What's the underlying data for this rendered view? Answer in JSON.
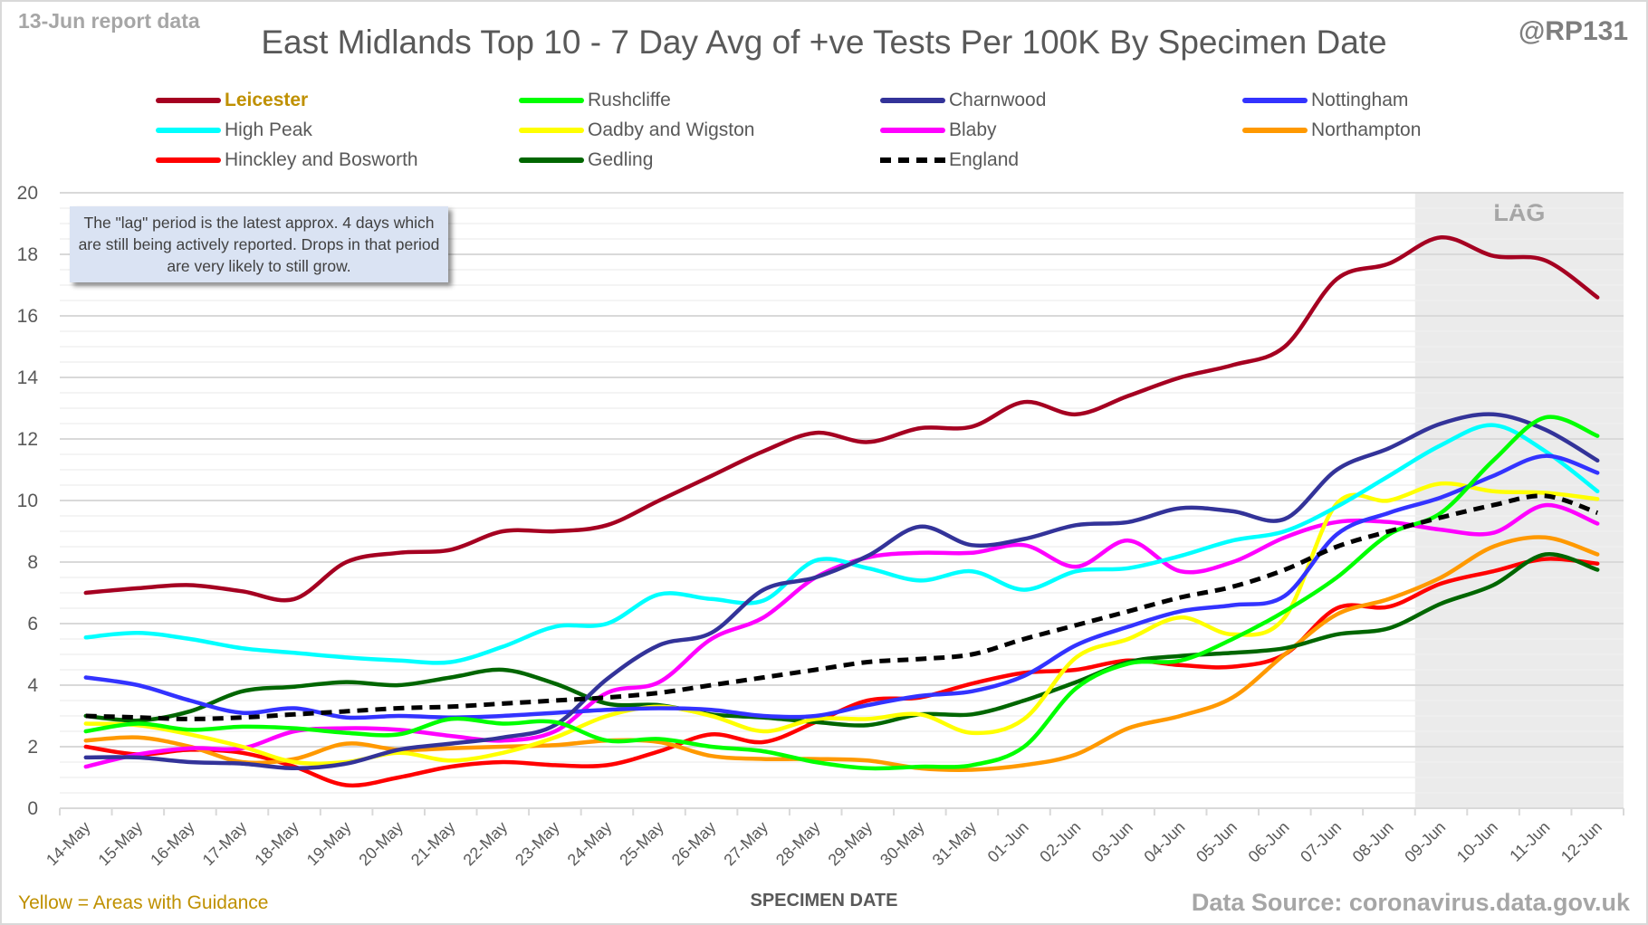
{
  "header": {
    "report_date": "13-Jun report data",
    "handle": "@RP131"
  },
  "note": "The \"lag\" period is the latest approx. 4 days which are still being actively reported. Drops in that period are very likely to still grow.",
  "footer": {
    "guidance_note": "Yellow = Areas with Guidance",
    "source": "Data Source: coronavirus.data.gov.uk"
  },
  "chart_data": {
    "type": "line",
    "title": "East Midlands Top 10 - 7 Day Avg of +ve Tests Per 100K By Specimen Date",
    "xlabel": "SPECIMEN DATE",
    "ylabel": "",
    "ylim": [
      0,
      20
    ],
    "yticks": [
      0,
      2,
      4,
      6,
      8,
      10,
      12,
      14,
      16,
      18,
      20
    ],
    "grid": true,
    "legend_position": "top",
    "lag_region": {
      "label": "LAG",
      "from": "09-Jun",
      "to": "12-Jun",
      "color": "#ebebeb"
    },
    "categories": [
      "14-May",
      "15-May",
      "16-May",
      "17-May",
      "18-May",
      "19-May",
      "20-May",
      "21-May",
      "22-May",
      "23-May",
      "24-May",
      "25-May",
      "26-May",
      "27-May",
      "28-May",
      "29-May",
      "30-May",
      "31-May",
      "01-Jun",
      "02-Jun",
      "03-Jun",
      "04-Jun",
      "05-Jun",
      "06-Jun",
      "07-Jun",
      "08-Jun",
      "09-Jun",
      "10-Jun",
      "11-Jun",
      "12-Jun"
    ],
    "series": [
      {
        "name": "Leicester",
        "color": "#a50021",
        "highlight": true,
        "dashed": false,
        "values": [
          7.0,
          7.15,
          7.25,
          7.05,
          6.8,
          8.0,
          8.3,
          8.4,
          9.0,
          9.0,
          9.2,
          10.0,
          10.8,
          11.6,
          12.2,
          11.9,
          12.35,
          12.4,
          13.2,
          12.8,
          13.4,
          14.0,
          14.4,
          15.0,
          17.2,
          17.7,
          18.55,
          17.95,
          17.8,
          16.6
        ]
      },
      {
        "name": "Rushcliffe",
        "color": "#00ff00",
        "highlight": false,
        "dashed": false,
        "values": [
          2.5,
          2.75,
          2.55,
          2.65,
          2.6,
          2.45,
          2.4,
          2.9,
          2.75,
          2.8,
          2.2,
          2.25,
          2.0,
          1.85,
          1.5,
          1.3,
          1.35,
          1.4,
          2.0,
          3.9,
          4.7,
          4.8,
          5.5,
          6.4,
          7.5,
          8.9,
          9.6,
          11.3,
          12.7,
          12.1
        ]
      },
      {
        "name": "Charnwood",
        "color": "#333399",
        "highlight": false,
        "dashed": false,
        "values": [
          1.65,
          1.65,
          1.5,
          1.45,
          1.3,
          1.45,
          1.9,
          2.1,
          2.3,
          2.7,
          4.2,
          5.3,
          5.7,
          7.1,
          7.5,
          8.2,
          9.15,
          8.55,
          8.75,
          9.2,
          9.3,
          9.75,
          9.65,
          9.4,
          11.0,
          11.7,
          12.5,
          12.8,
          12.3,
          11.3
        ]
      },
      {
        "name": "Nottingham",
        "color": "#3333ff",
        "highlight": false,
        "dashed": false,
        "values": [
          4.25,
          4.0,
          3.5,
          3.1,
          3.25,
          2.95,
          3.0,
          2.95,
          3.0,
          3.1,
          3.2,
          3.25,
          3.2,
          3.0,
          3.0,
          3.35,
          3.65,
          3.8,
          4.3,
          5.3,
          5.9,
          6.4,
          6.6,
          6.9,
          8.9,
          9.6,
          10.1,
          10.8,
          11.45,
          10.9
        ]
      },
      {
        "name": "High Peak",
        "color": "#00ffff",
        "highlight": false,
        "dashed": false,
        "values": [
          5.55,
          5.7,
          5.5,
          5.2,
          5.05,
          4.9,
          4.8,
          4.75,
          5.25,
          5.9,
          6.0,
          6.95,
          6.8,
          6.75,
          8.05,
          7.8,
          7.4,
          7.7,
          7.1,
          7.7,
          7.8,
          8.2,
          8.7,
          9.0,
          9.8,
          10.8,
          11.8,
          12.45,
          11.6,
          10.3
        ]
      },
      {
        "name": "Oadby and Wigston",
        "color": "#ffff00",
        "highlight": false,
        "dashed": false,
        "values": [
          2.75,
          2.7,
          2.4,
          2.0,
          1.5,
          1.5,
          1.8,
          1.55,
          1.8,
          2.3,
          3.0,
          3.3,
          3.0,
          2.5,
          2.9,
          2.9,
          3.05,
          2.45,
          2.9,
          4.9,
          5.5,
          6.2,
          5.65,
          6.2,
          9.9,
          10.0,
          10.55,
          10.3,
          10.25,
          10.05
        ]
      },
      {
        "name": "Blaby",
        "color": "#ff00ff",
        "highlight": false,
        "dashed": false,
        "values": [
          1.35,
          1.75,
          1.95,
          1.95,
          2.5,
          2.6,
          2.55,
          2.35,
          2.2,
          2.5,
          3.75,
          4.1,
          5.5,
          6.2,
          7.5,
          8.15,
          8.3,
          8.3,
          8.55,
          7.85,
          8.7,
          7.7,
          8.0,
          8.8,
          9.3,
          9.3,
          9.05,
          8.95,
          9.85,
          9.25
        ]
      },
      {
        "name": "Northampton",
        "color": "#ff9900",
        "highlight": false,
        "dashed": false,
        "values": [
          2.2,
          2.3,
          2.0,
          1.5,
          1.6,
          2.1,
          1.9,
          1.95,
          2.0,
          2.05,
          2.2,
          2.15,
          1.7,
          1.6,
          1.6,
          1.55,
          1.3,
          1.25,
          1.4,
          1.75,
          2.6,
          3.0,
          3.6,
          5.0,
          6.3,
          6.8,
          7.5,
          8.5,
          8.8,
          8.25
        ]
      },
      {
        "name": "Hinckley and Bosworth",
        "color": "#ff0000",
        "highlight": false,
        "dashed": false,
        "values": [
          2.0,
          1.75,
          1.9,
          1.8,
          1.35,
          0.75,
          1.0,
          1.35,
          1.5,
          1.4,
          1.4,
          1.85,
          2.4,
          2.15,
          2.8,
          3.5,
          3.6,
          4.05,
          4.4,
          4.5,
          4.8,
          4.65,
          4.6,
          5.0,
          6.5,
          6.55,
          7.3,
          7.7,
          8.1,
          7.95
        ]
      },
      {
        "name": "Gedling",
        "color": "#006600",
        "highlight": false,
        "dashed": false,
        "values": [
          3.0,
          2.85,
          3.15,
          3.8,
          3.95,
          4.1,
          4.0,
          4.25,
          4.5,
          4.05,
          3.4,
          3.35,
          3.05,
          2.95,
          2.8,
          2.7,
          3.05,
          3.05,
          3.5,
          4.1,
          4.75,
          4.95,
          5.05,
          5.2,
          5.65,
          5.85,
          6.65,
          7.25,
          8.25,
          7.75
        ]
      },
      {
        "name": "England",
        "color": "#000000",
        "highlight": false,
        "dashed": true,
        "values": [
          3.0,
          2.95,
          2.9,
          2.95,
          3.05,
          3.15,
          3.25,
          3.3,
          3.4,
          3.5,
          3.6,
          3.75,
          4.0,
          4.25,
          4.5,
          4.75,
          4.85,
          5.0,
          5.5,
          5.95,
          6.4,
          6.85,
          7.2,
          7.75,
          8.5,
          9.0,
          9.45,
          9.85,
          10.15,
          9.6
        ]
      }
    ]
  }
}
